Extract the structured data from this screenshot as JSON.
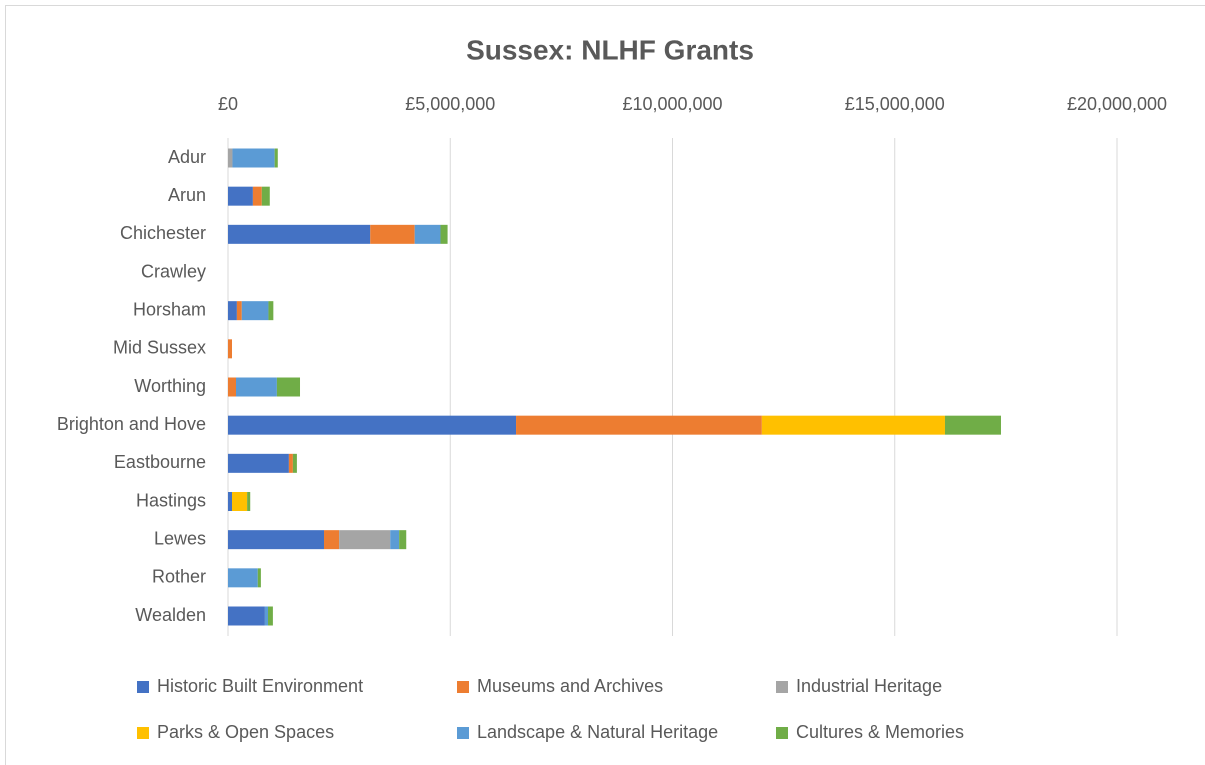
{
  "chart_data": {
    "type": "stacked_barh",
    "title": "Sussex: NLHF Grants",
    "categories": [
      "Adur",
      "Arun",
      "Chichester",
      "Crawley",
      "Horsham",
      "Mid Sussex",
      "Worthing",
      "Brighton and Hove",
      "Eastbourne",
      "Hastings",
      "Lewes",
      "Rother",
      "Wealden"
    ],
    "series": [
      {
        "name": "Historic Built Environment",
        "color": "#4472c4",
        "values": [
          0,
          560000,
          3200000,
          0,
          200000,
          0,
          0,
          6480000,
          1370000,
          90000,
          2160000,
          0,
          830000
        ]
      },
      {
        "name": "Museums and Archives",
        "color": "#ed7d31",
        "values": [
          0,
          200000,
          1000000,
          0,
          110000,
          90000,
          180000,
          5530000,
          90000,
          0,
          340000,
          0,
          0
        ]
      },
      {
        "name": "Industrial Heritage",
        "color": "#a5a5a5",
        "values": [
          100000,
          0,
          0,
          0,
          0,
          0,
          0,
          0,
          0,
          0,
          1150000,
          0,
          0
        ]
      },
      {
        "name": "Parks & Open Spaces",
        "color": "#ffc000",
        "values": [
          0,
          0,
          0,
          0,
          0,
          0,
          0,
          4120000,
          0,
          340000,
          0,
          0,
          0
        ]
      },
      {
        "name": "Landscape & Natural Heritage",
        "color": "#5b9bd5",
        "values": [
          950000,
          0,
          580000,
          0,
          600000,
          0,
          920000,
          0,
          0,
          0,
          200000,
          670000,
          70000
        ]
      },
      {
        "name": "Cultures & Memories",
        "color": "#70ad47",
        "values": [
          70000,
          180000,
          160000,
          0,
          110000,
          0,
          520000,
          1260000,
          90000,
          70000,
          160000,
          70000,
          110000
        ]
      }
    ],
    "xlim": [
      0,
      20000000
    ],
    "xticks": [
      {
        "value": 0,
        "label": "£0"
      },
      {
        "value": 5000000,
        "label": "£5,000,000"
      },
      {
        "value": 10000000,
        "label": "£10,000,000"
      },
      {
        "value": 15000000,
        "label": "£15,000,000"
      },
      {
        "value": 20000000,
        "label": "£20,000,000"
      }
    ],
    "grid": true,
    "legend": "bottom"
  }
}
